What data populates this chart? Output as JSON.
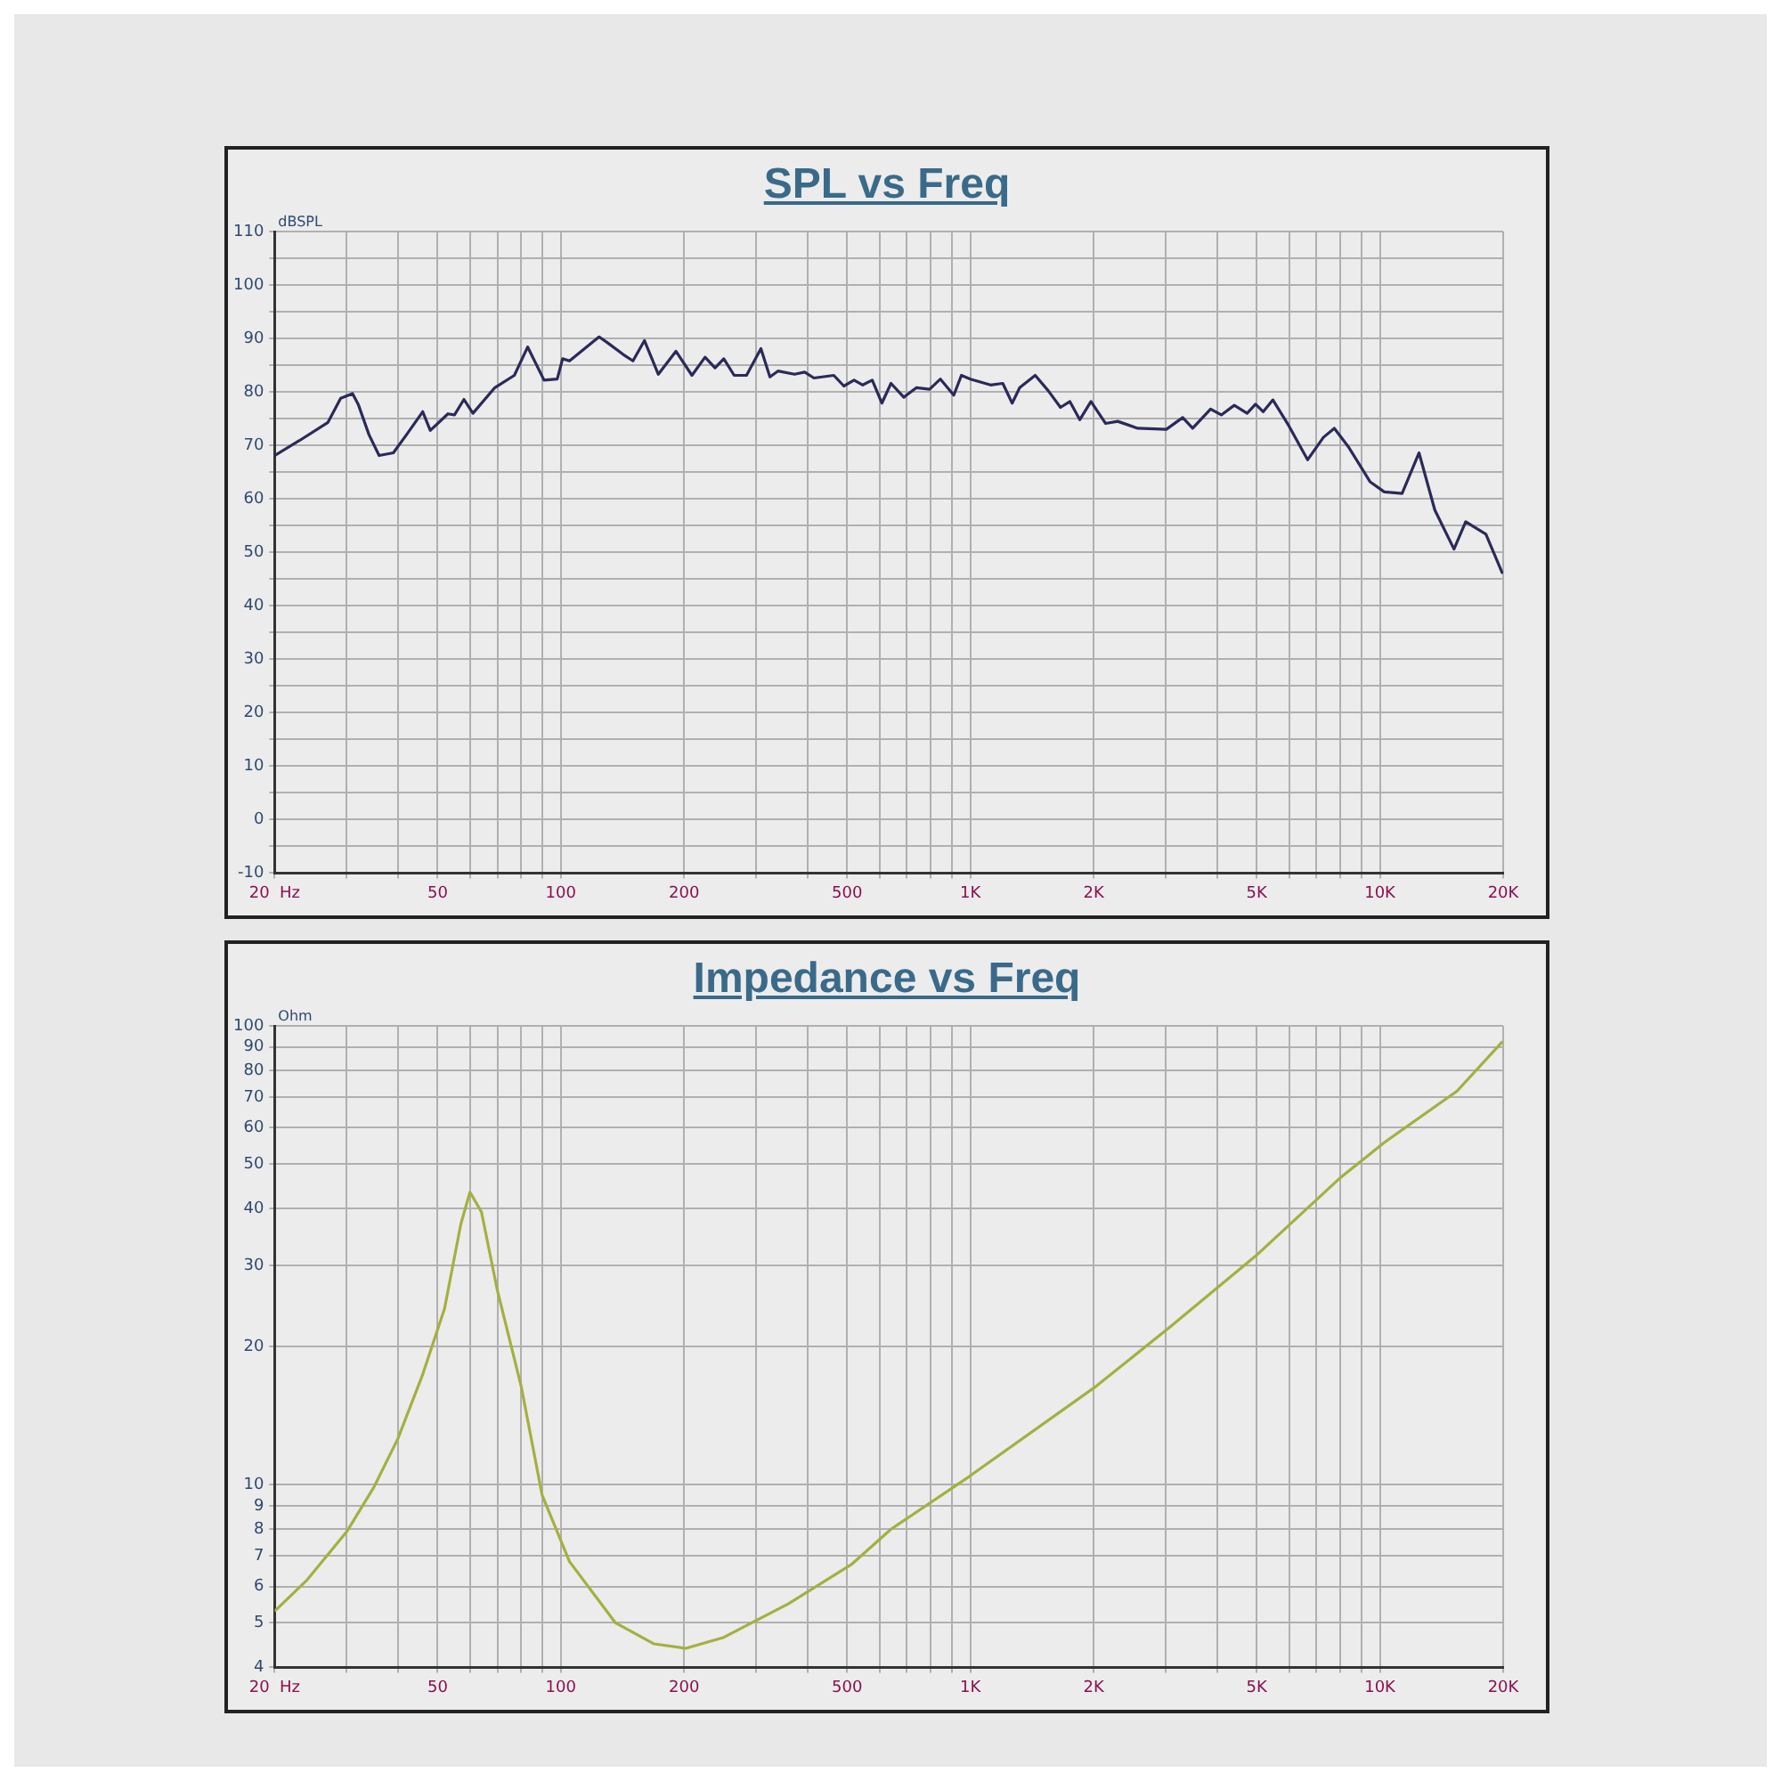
{
  "chart_data": [
    {
      "type": "line",
      "title": "SPL vs Freq",
      "ylabel": "dBSPL",
      "log": "x",
      "grid": true,
      "legend": false,
      "marker": "none",
      "line_style": "solid",
      "xlim": [
        20,
        20000
      ],
      "xticks": [
        {
          "value": 20,
          "label": "20  Hz"
        },
        {
          "value": 30,
          "label": null
        },
        {
          "value": 40,
          "label": null
        },
        {
          "value": 50,
          "label": "50"
        },
        {
          "value": 60,
          "label": null
        },
        {
          "value": 70,
          "label": null
        },
        {
          "value": 80,
          "label": null
        },
        {
          "value": 90,
          "label": null
        },
        {
          "value": 100,
          "label": "100"
        },
        {
          "value": 200,
          "label": "200"
        },
        {
          "value": 300,
          "label": null
        },
        {
          "value": 400,
          "label": null
        },
        {
          "value": 500,
          "label": "500"
        },
        {
          "value": 600,
          "label": null
        },
        {
          "value": 700,
          "label": null
        },
        {
          "value": 800,
          "label": null
        },
        {
          "value": 900,
          "label": null
        },
        {
          "value": 1000,
          "label": "1K"
        },
        {
          "value": 2000,
          "label": "2K"
        },
        {
          "value": 3000,
          "label": null
        },
        {
          "value": 4000,
          "label": null
        },
        {
          "value": 5000,
          "label": "5K"
        },
        {
          "value": 6000,
          "label": null
        },
        {
          "value": 7000,
          "label": null
        },
        {
          "value": 8000,
          "label": null
        },
        {
          "value": 9000,
          "label": null
        },
        {
          "value": 10000,
          "label": "10K"
        },
        {
          "value": 20000,
          "label": "20K"
        }
      ],
      "ylim": [
        -10,
        110
      ],
      "yticks": [
        -10,
        {
          "value": -5,
          "label": null
        },
        0,
        {
          "value": 5,
          "label": null
        },
        10,
        {
          "value": 15,
          "label": null
        },
        20,
        {
          "value": 25,
          "label": null
        },
        30,
        {
          "value": 35,
          "label": null
        },
        40,
        {
          "value": 45,
          "label": null
        },
        50,
        {
          "value": 55,
          "label": null
        },
        60,
        {
          "value": 65,
          "label": null
        },
        70,
        {
          "value": 75,
          "label": null
        },
        80,
        {
          "value": 85,
          "label": null
        },
        90,
        {
          "value": 95,
          "label": null
        },
        100,
        {
          "value": 105,
          "label": null
        },
        110
      ],
      "series": [
        {
          "color": "#2a2a5a",
          "x": [
            20,
            23,
            27,
            29,
            31,
            32,
            34,
            36,
            39,
            42,
            46,
            48,
            53,
            55,
            58,
            61,
            69,
            77,
            83,
            91,
            98,
            101,
            105,
            124,
            130,
            142,
            150,
            160,
            173,
            191,
            209,
            225,
            238,
            250,
            265,
            284,
            308,
            324,
            339,
            372,
            394,
            415,
            464,
            491,
            520,
            546,
            576,
            608,
            640,
            688,
            739,
            795,
            845,
            911,
            951,
            1000,
            1120,
            1200,
            1265,
            1320,
            1440,
            1550,
            1660,
            1750,
            1850,
            1970,
            2140,
            2290,
            2560,
            3010,
            3300,
            3490,
            3860,
            4100,
            4410,
            4740,
            4970,
            5190,
            5480,
            5990,
            6660,
            7280,
            7740,
            8400,
            9460,
            10250,
            11330,
            12460,
            13620,
            15170,
            16200,
            18150,
            19930
          ],
          "values": [
            68.1,
            70.9,
            74.3,
            78.8,
            79.7,
            77.7,
            72,
            68.1,
            68.6,
            72,
            76.3,
            72.8,
            75.9,
            75.7,
            78.6,
            76,
            80.8,
            83.1,
            88.4,
            82.2,
            82.4,
            86.2,
            85.8,
            90.3,
            89.2,
            87,
            85.8,
            89.6,
            83.3,
            87.6,
            83.1,
            86.5,
            84.5,
            86.2,
            83.1,
            83.1,
            88.1,
            82.8,
            83.9,
            83.3,
            83.7,
            82.6,
            83.1,
            81.1,
            82.2,
            81.3,
            82.2,
            77.9,
            81.6,
            79,
            80.8,
            80.5,
            82.4,
            79.4,
            83.1,
            82.4,
            81.3,
            81.6,
            77.9,
            80.8,
            83.1,
            80.2,
            77.1,
            78.2,
            74.8,
            78.2,
            74.1,
            74.5,
            73.2,
            73,
            75.2,
            73.2,
            76.8,
            75.7,
            77.5,
            76,
            77.7,
            76.3,
            78.5,
            73.7,
            67.3,
            71.5,
            73.2,
            69.6,
            63.2,
            61.3,
            61,
            68.6,
            57.9,
            50.6,
            55.7,
            53.4,
            46
          ]
        }
      ]
    },
    {
      "type": "line",
      "title": "Impedance vs Freq",
      "ylabel": "Ohm",
      "log": "xy",
      "grid": true,
      "legend": false,
      "marker": "none",
      "line_style": "solid",
      "xlim": [
        20,
        20000
      ],
      "xticks": [
        {
          "value": 20,
          "label": "20  Hz"
        },
        {
          "value": 30,
          "label": null
        },
        {
          "value": 40,
          "label": null
        },
        {
          "value": 50,
          "label": "50"
        },
        {
          "value": 60,
          "label": null
        },
        {
          "value": 70,
          "label": null
        },
        {
          "value": 80,
          "label": null
        },
        {
          "value": 90,
          "label": null
        },
        {
          "value": 100,
          "label": "100"
        },
        {
          "value": 200,
          "label": "200"
        },
        {
          "value": 300,
          "label": null
        },
        {
          "value": 400,
          "label": null
        },
        {
          "value": 500,
          "label": "500"
        },
        {
          "value": 600,
          "label": null
        },
        {
          "value": 700,
          "label": null
        },
        {
          "value": 800,
          "label": null
        },
        {
          "value": 900,
          "label": null
        },
        {
          "value": 1000,
          "label": "1K"
        },
        {
          "value": 2000,
          "label": "2K"
        },
        {
          "value": 3000,
          "label": null
        },
        {
          "value": 4000,
          "label": null
        },
        {
          "value": 5000,
          "label": "5K"
        },
        {
          "value": 6000,
          "label": null
        },
        {
          "value": 7000,
          "label": null
        },
        {
          "value": 8000,
          "label": null
        },
        {
          "value": 9000,
          "label": null
        },
        {
          "value": 10000,
          "label": "10K"
        },
        {
          "value": 20000,
          "label": "20K"
        }
      ],
      "ylim": [
        4,
        100
      ],
      "yticks": [
        4,
        5,
        6,
        7,
        8,
        9,
        10,
        20,
        30,
        40,
        50,
        60,
        70,
        80,
        90,
        100
      ],
      "series": [
        {
          "color": "#a4b040",
          "x": [
            20,
            24,
            30,
            35,
            40,
            46,
            52,
            57,
            60,
            64,
            70,
            80,
            90,
            105,
            136,
            169,
            202,
            250,
            359,
            512,
            640,
            990,
            2030,
            3080,
            5030,
            7970,
            10250,
            15430,
            19930
          ],
          "values": [
            5.3,
            6.2,
            7.9,
            9.9,
            12.6,
            17.4,
            24.2,
            37,
            43.4,
            39.3,
            26.5,
            16.4,
            9.5,
            6.8,
            5,
            4.5,
            4.4,
            4.65,
            5.5,
            6.7,
            8,
            10.4,
            16.4,
            22.1,
            31.8,
            46.5,
            55.7,
            72.1,
            92.4
          ]
        }
      ]
    }
  ]
}
